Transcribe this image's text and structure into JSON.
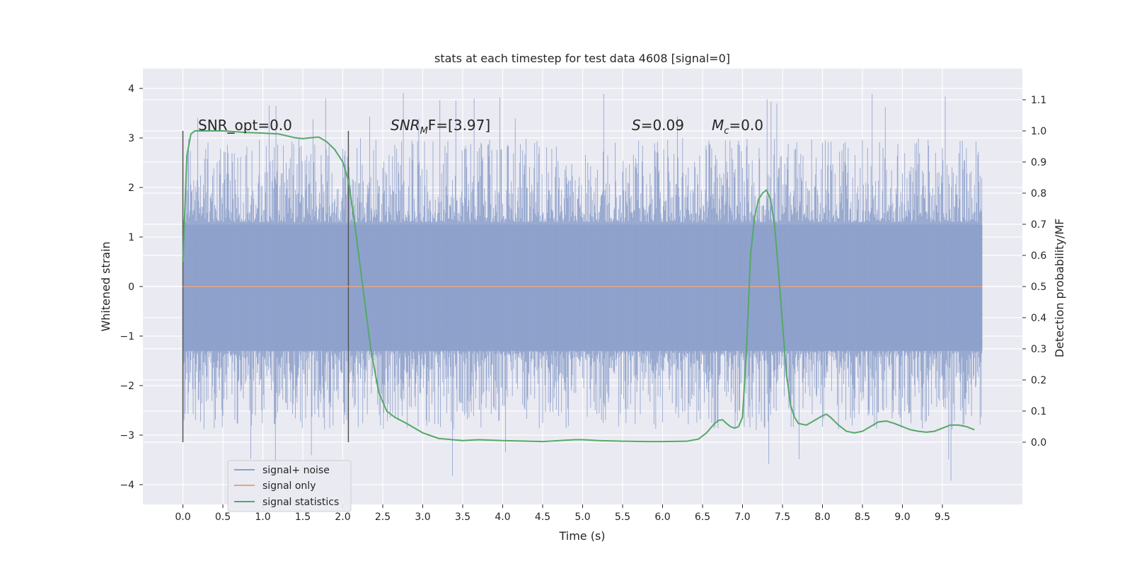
{
  "chart_data": {
    "type": "line",
    "title": "stats at each timestep for test data 4608 [signal=0]",
    "xlabel": "Time (s)",
    "ylabel": "Whitened strain",
    "ylabel_right": "Detection probability/MF",
    "xlim": [
      -0.5,
      10.5
    ],
    "ylim": [
      -4.4,
      4.4
    ],
    "ylim_right": [
      -0.2,
      1.2
    ],
    "x_ticks": [
      0.0,
      0.5,
      1.0,
      1.5,
      2.0,
      2.5,
      3.0,
      3.5,
      4.0,
      4.5,
      5.0,
      5.5,
      6.0,
      6.5,
      7.0,
      7.5,
      8.0,
      8.5,
      9.0,
      9.5
    ],
    "x_tick_labels": [
      "0.0",
      "0.5",
      "1.0",
      "1.5",
      "2.0",
      "2.5",
      "3.0",
      "3.5",
      "4.0",
      "4.5",
      "5.0",
      "5.5",
      "6.0",
      "6.5",
      "7.0",
      "7.5",
      "8.0",
      "8.5",
      "9.0",
      "9.5"
    ],
    "y_ticks": [
      -4,
      -3,
      -2,
      -1,
      0,
      1,
      2,
      3,
      4
    ],
    "y_tick_labels": [
      "−4",
      "−3",
      "−2",
      "−1",
      "0",
      "1",
      "2",
      "3",
      "4"
    ],
    "y_right_ticks": [
      0.0,
      0.1,
      0.2,
      0.3,
      0.4,
      0.5,
      0.6,
      0.7,
      0.8,
      0.9,
      1.0,
      1.1
    ],
    "y_right_tick_labels": [
      "0.0",
      "0.1",
      "0.2",
      "0.3",
      "0.4",
      "0.5",
      "0.6",
      "0.7",
      "0.8",
      "0.9",
      "1.0",
      "1.1"
    ],
    "grid": true,
    "legend_position": "lower-left",
    "annotations": {
      "snr_opt": "SNR_opt=0.0",
      "snr_mf_main": "SNR",
      "snr_mf_sub": "M",
      "snr_mf_rest": "F=[3.97]",
      "s_main": "S",
      "s_rest": "=0.09",
      "mc_main": "M",
      "mc_sub": "c",
      "mc_rest": "=0.0"
    },
    "vertical_markers": [
      0.0,
      2.07
    ],
    "series": [
      {
        "name": "signal+ noise",
        "color": "#8da0cb",
        "t_range": [
          0.0,
          10.0
        ],
        "band": [
          -1.3,
          1.25
        ],
        "y_range": [
          -4.0,
          3.95
        ]
      },
      {
        "name": "signal only",
        "color": "#e8a483",
        "x": [
          0.0,
          10.0
        ],
        "y": [
          0.0,
          0.0
        ]
      },
      {
        "name": "signal statistics",
        "color": "#55a868",
        "axis": "right",
        "x": [
          0.0,
          0.05,
          0.1,
          0.15,
          0.3,
          0.5,
          0.8,
          1.0,
          1.2,
          1.4,
          1.5,
          1.6,
          1.7,
          1.8,
          1.9,
          2.0,
          2.07,
          2.15,
          2.25,
          2.35,
          2.45,
          2.55,
          2.65,
          2.8,
          3.0,
          3.2,
          3.5,
          3.7,
          4.0,
          4.5,
          4.9,
          5.0,
          5.2,
          5.5,
          5.8,
          6.0,
          6.3,
          6.45,
          6.55,
          6.65,
          6.7,
          6.75,
          6.8,
          6.85,
          6.9,
          6.95,
          7.0,
          7.05,
          7.1,
          7.15,
          7.2,
          7.25,
          7.3,
          7.35,
          7.4,
          7.45,
          7.5,
          7.55,
          7.6,
          7.65,
          7.7,
          7.8,
          7.9,
          8.0,
          8.05,
          8.1,
          8.2,
          8.3,
          8.4,
          8.5,
          8.6,
          8.7,
          8.8,
          8.9,
          9.0,
          9.1,
          9.2,
          9.3,
          9.4,
          9.5,
          9.6,
          9.7,
          9.8,
          9.9
        ],
        "y": [
          0.58,
          0.92,
          0.99,
          1.0,
          1.0,
          1.0,
          0.995,
          0.993,
          0.99,
          0.978,
          0.975,
          0.978,
          0.98,
          0.965,
          0.94,
          0.9,
          0.84,
          0.7,
          0.5,
          0.3,
          0.16,
          0.1,
          0.08,
          0.06,
          0.03,
          0.012,
          0.005,
          0.008,
          0.005,
          0.002,
          0.008,
          0.008,
          0.005,
          0.003,
          0.002,
          0.002,
          0.003,
          0.01,
          0.03,
          0.06,
          0.07,
          0.072,
          0.06,
          0.05,
          0.045,
          0.05,
          0.08,
          0.3,
          0.6,
          0.72,
          0.78,
          0.8,
          0.81,
          0.78,
          0.7,
          0.55,
          0.38,
          0.22,
          0.12,
          0.08,
          0.06,
          0.055,
          0.07,
          0.085,
          0.09,
          0.08,
          0.055,
          0.035,
          0.03,
          0.035,
          0.05,
          0.065,
          0.068,
          0.06,
          0.05,
          0.04,
          0.035,
          0.032,
          0.035,
          0.045,
          0.055,
          0.055,
          0.05,
          0.04
        ]
      }
    ]
  }
}
